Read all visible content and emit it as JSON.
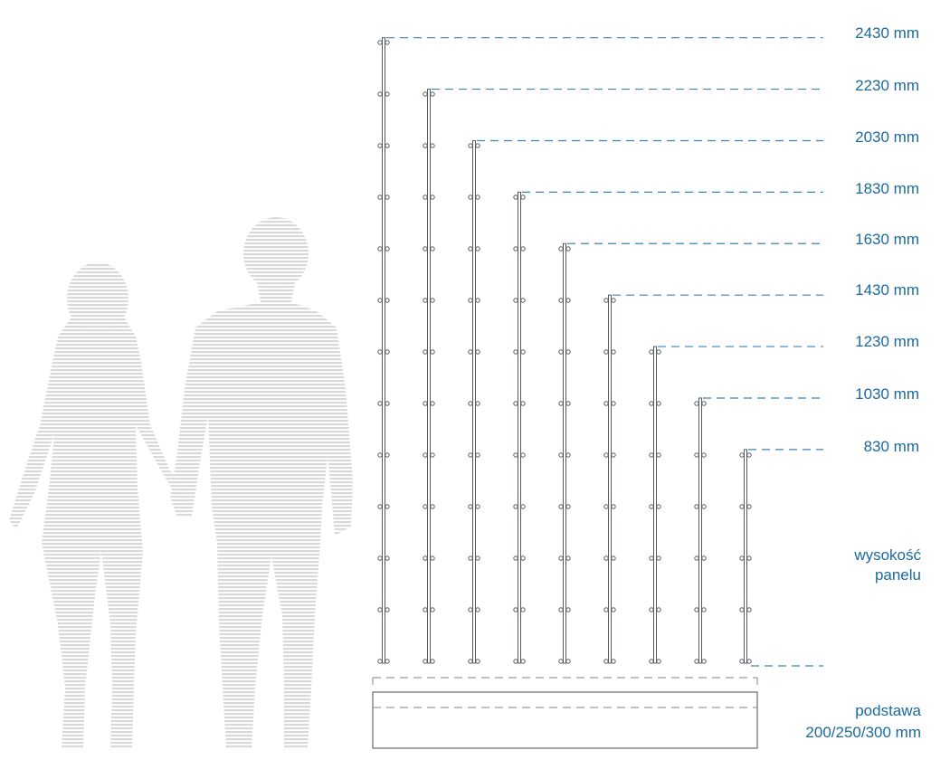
{
  "chart_data": {
    "type": "diagram",
    "unit": "mm",
    "panel_heights": [
      "2430 mm",
      "2230 mm",
      "2030 mm",
      "1830 mm",
      "1630 mm",
      "1430 mm",
      "1230 mm",
      "1030 mm",
      "830 mm"
    ],
    "panel_label": [
      "wysokość",
      "panelu"
    ],
    "base_label": [
      "podstawa",
      "200/250/300 mm"
    ]
  },
  "colors": {
    "label_blue": "#1b6a9e",
    "leader_blue": "#3c82b8",
    "post_gray": "#555a60",
    "silhouette_gray": "#d9d9d9"
  },
  "icons": {
    "figures": "couple-silhouette-icon"
  }
}
